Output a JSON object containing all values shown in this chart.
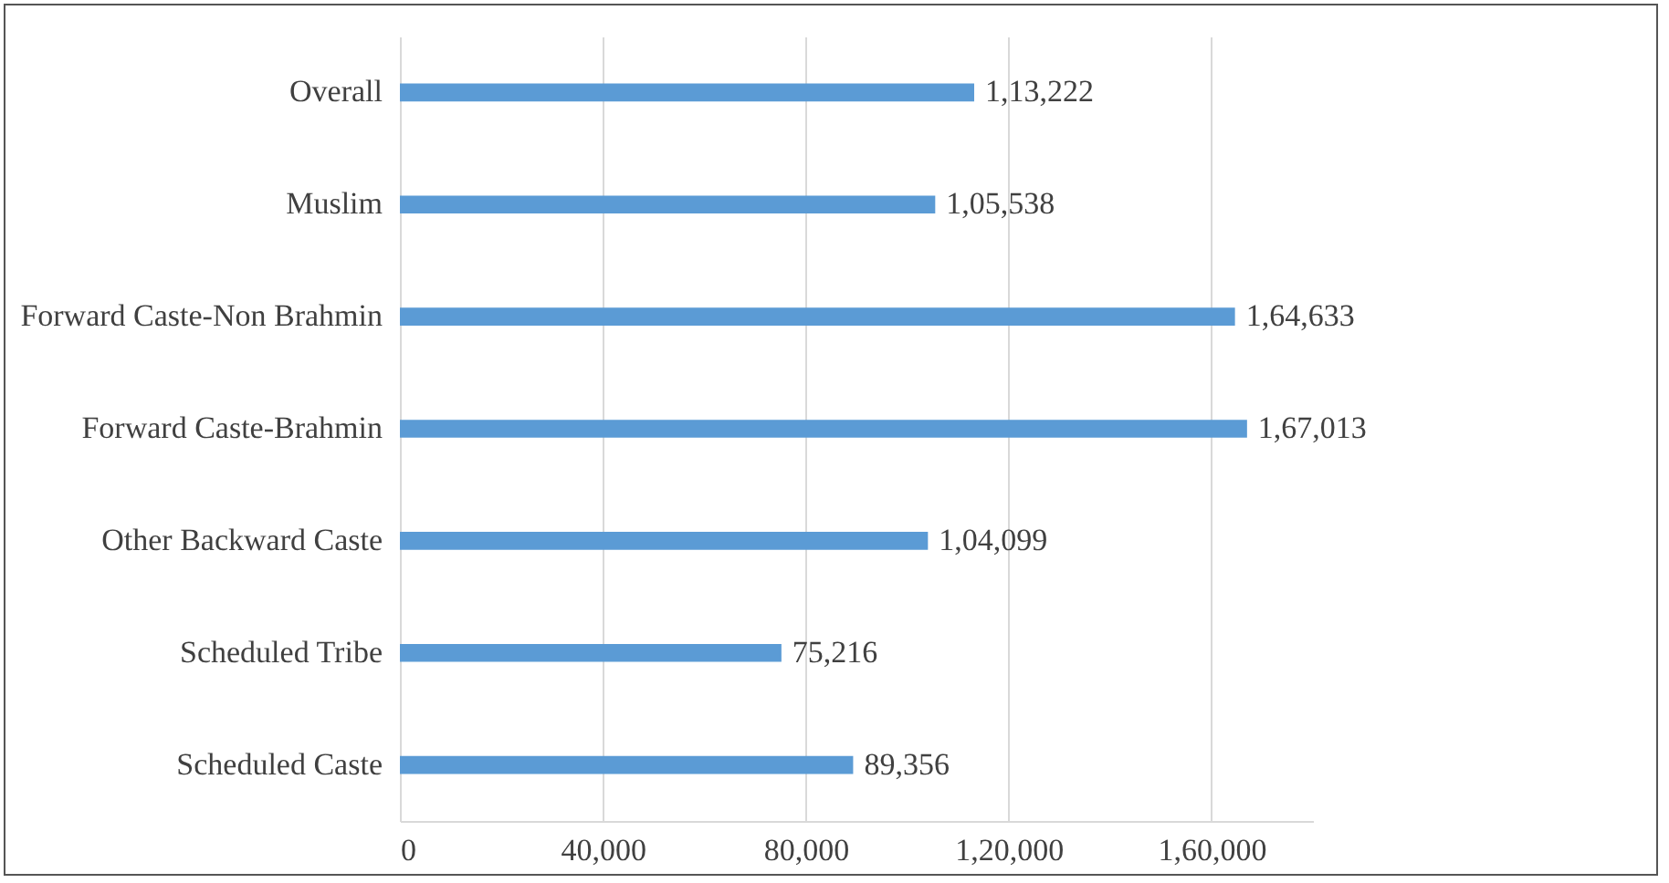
{
  "chart_data": {
    "type": "bar",
    "orientation": "horizontal",
    "categories": [
      "Overall",
      "Muslim",
      "Forward Caste-Non Brahmin",
      "Forward Caste-Brahmin",
      "Other Backward Caste",
      "Scheduled Tribe",
      "Scheduled Caste"
    ],
    "values": [
      113222,
      105538,
      164633,
      167013,
      104099,
      75216,
      89356
    ],
    "value_labels": [
      "1,13,222",
      "1,05,538",
      "1,64,633",
      "1,67,013",
      "1,04,099",
      "75,216",
      "89,356"
    ],
    "color": "#5b9bd5",
    "xlim": [
      0,
      180000
    ],
    "xticks": [
      {
        "value": 0,
        "label": "0"
      },
      {
        "value": 40000,
        "label": "40,000"
      },
      {
        "value": 80000,
        "label": "80,000"
      },
      {
        "value": 120000,
        "label": "1,20,000"
      },
      {
        "value": 160000,
        "label": "1,60,000"
      }
    ],
    "grid": "x"
  }
}
